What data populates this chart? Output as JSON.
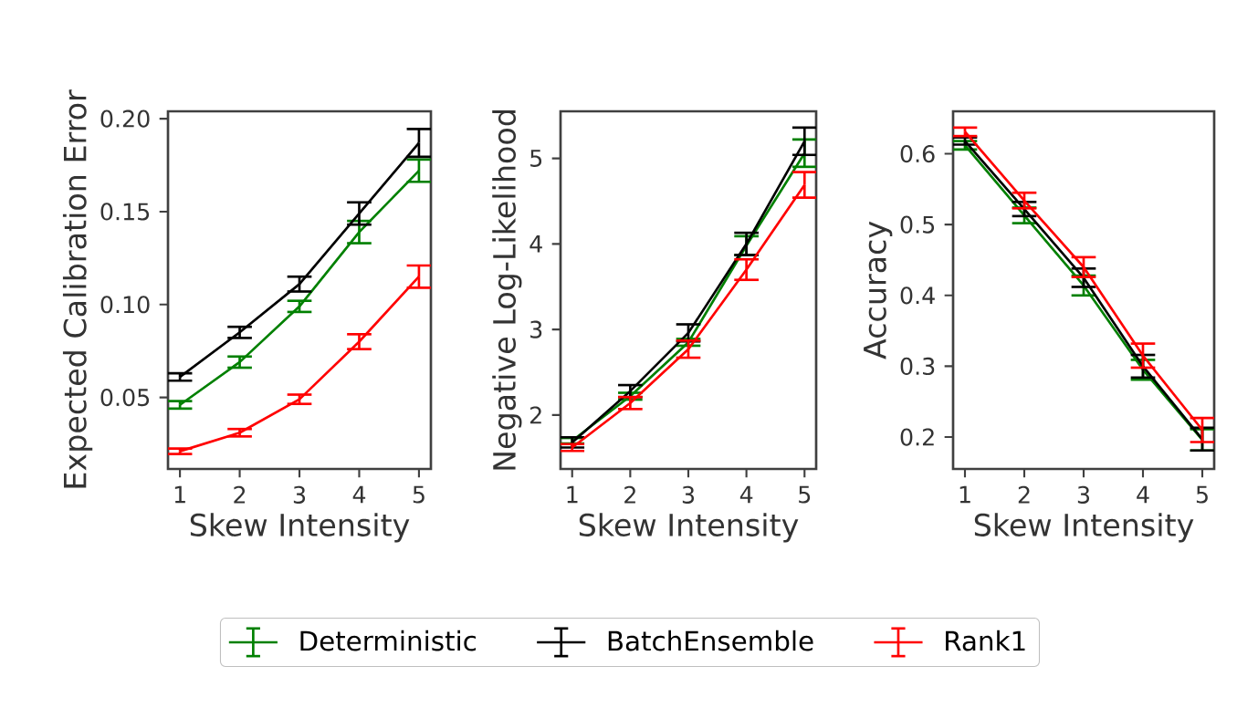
{
  "chart_data": [
    {
      "type": "line",
      "xlabel": "Skew Intensity",
      "ylabel": "Expected Calibration Error",
      "x": [
        1,
        2,
        3,
        4,
        5
      ],
      "xlim": [
        0.8,
        5.2
      ],
      "xticks": [
        1,
        2,
        3,
        4,
        5
      ],
      "ylim": [
        0.0115,
        0.204
      ],
      "yticks": [
        0.05,
        {
          "value": 0.1,
          "label": "0.10"
        },
        0.15,
        {
          "value": 0.2,
          "label": "0.20"
        }
      ],
      "legend": "bottom",
      "marker": "none",
      "line_style": "solid",
      "series": [
        {
          "name": "Deterministic",
          "color": "#008000",
          "values": [
            0.046,
            0.069,
            0.099,
            0.139,
            0.172
          ],
          "errors": [
            0.002,
            0.003,
            0.003,
            0.006,
            0.006
          ]
        },
        {
          "name": "BatchEnsemble",
          "color": "#000000",
          "values": [
            0.061,
            0.085,
            0.111,
            0.149,
            0.187
          ],
          "errors": [
            0.002,
            0.003,
            0.004,
            0.006,
            0.0075
          ]
        },
        {
          "name": "Rank1",
          "color": "#ff0000",
          "values": [
            0.021,
            0.031,
            0.049,
            0.08,
            0.115
          ],
          "errors": [
            0.0015,
            0.002,
            0.0025,
            0.004,
            0.006
          ]
        }
      ]
    },
    {
      "type": "line",
      "xlabel": "Skew Intensity",
      "ylabel": "Negative Log-Likelihood",
      "x": [
        1,
        2,
        3,
        4,
        5
      ],
      "xlim": [
        0.8,
        5.2
      ],
      "xticks": [
        1,
        2,
        3,
        4,
        5
      ],
      "ylim": [
        1.37,
        5.55
      ],
      "yticks": [
        2,
        3,
        4,
        5
      ],
      "marker": "none",
      "line_style": "solid",
      "series": [
        {
          "color": "#008000",
          "values": [
            1.7,
            2.22,
            2.85,
            3.98,
            5.06
          ],
          "errors": [
            0.03,
            0.04,
            0.04,
            0.11,
            0.16
          ]
        },
        {
          "color": "#000000",
          "values": [
            1.68,
            2.28,
            2.96,
            4.0,
            5.2
          ],
          "errors": [
            0.06,
            0.07,
            0.1,
            0.13,
            0.16
          ]
        },
        {
          "color": "#ff0000",
          "values": [
            1.62,
            2.14,
            2.77,
            3.7,
            4.69
          ],
          "errors": [
            0.04,
            0.07,
            0.1,
            0.12,
            0.15
          ]
        }
      ]
    },
    {
      "type": "line",
      "xlabel": "Skew Intensity",
      "ylabel": "Accuracy",
      "x": [
        1,
        2,
        3,
        4,
        5
      ],
      "xlim": [
        0.8,
        5.2
      ],
      "xticks": [
        1,
        2,
        3,
        4,
        5
      ],
      "ylim": [
        0.155,
        0.66
      ],
      "yticks": [
        0.2,
        0.3,
        0.4,
        0.5,
        0.6
      ],
      "marker": "none",
      "line_style": "solid",
      "series": [
        {
          "color": "#008000",
          "values": [
            0.612,
            0.513,
            0.414,
            0.295,
            0.196
          ],
          "errors": [
            0.006,
            0.011,
            0.014,
            0.014,
            0.015
          ]
        },
        {
          "color": "#000000",
          "values": [
            0.618,
            0.522,
            0.425,
            0.3,
            0.197
          ],
          "errors": [
            0.005,
            0.01,
            0.013,
            0.016,
            0.016
          ]
        },
        {
          "color": "#ff0000",
          "values": [
            0.631,
            0.534,
            0.44,
            0.315,
            0.21
          ],
          "errors": [
            0.006,
            0.011,
            0.014,
            0.017,
            0.017
          ]
        }
      ]
    }
  ]
}
